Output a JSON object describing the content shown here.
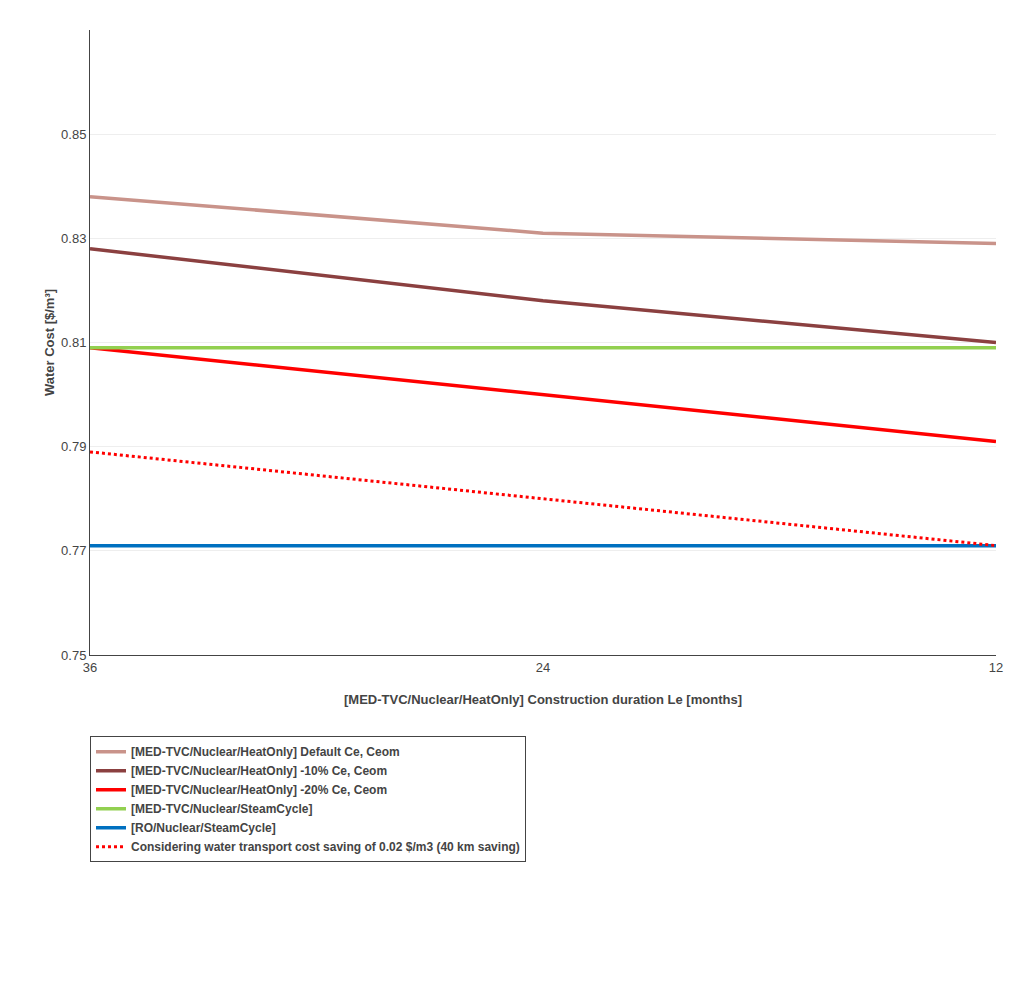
{
  "chart_data": {
    "type": "line",
    "xlabel": "[MED-TVC/Nuclear/HeatOnly] Construction duration Le [months]",
    "ylabel": "Water Cost [$/m³]",
    "x": [
      36,
      24,
      12
    ],
    "xlim": [
      36,
      12
    ],
    "xticks": [
      36,
      24,
      12
    ],
    "ylim": [
      0.75,
      0.87
    ],
    "yticks": [
      0.75,
      0.77,
      0.79,
      0.81,
      0.83,
      0.85
    ],
    "grid": "y",
    "legend": "bottom",
    "series": [
      {
        "name": "[MED-TVC/Nuclear/HeatOnly] Default Ce, Ceom",
        "color": "#C9938A",
        "line_style": "solid",
        "values": [
          0.838,
          0.831,
          0.829
        ]
      },
      {
        "name": "[MED-TVC/Nuclear/HeatOnly] -10% Ce, Ceom",
        "color": "#8B4040",
        "line_style": "solid",
        "values": [
          0.828,
          0.818,
          0.81
        ]
      },
      {
        "name": "[MED-TVC/Nuclear/HeatOnly] -20% Ce, Ceom",
        "color": "#FF0000",
        "line_style": "solid",
        "values": [
          0.809,
          0.8,
          0.791
        ]
      },
      {
        "name": "[MED-TVC/Nuclear/SteamCycle]",
        "color": "#92D050",
        "line_style": "solid",
        "values": [
          0.809,
          0.809,
          0.809
        ]
      },
      {
        "name": "[RO/Nuclear/SteamCycle]",
        "color": "#0070C0",
        "line_style": "solid",
        "values": [
          0.771,
          0.771,
          0.771
        ]
      },
      {
        "name": "Considering water transport cost saving of 0.02 $/m3 (40 km saving)",
        "color": "#FF0000",
        "line_style": "dotted",
        "values": [
          0.789,
          0.78,
          0.771
        ]
      }
    ]
  }
}
